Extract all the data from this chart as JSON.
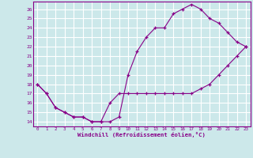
{
  "xlabel": "Windchill (Refroidissement éolien,°C)",
  "bg_color": "#cce8ea",
  "grid_color": "#b0d8dc",
  "line_color": "#880088",
  "xlim": [
    -0.5,
    23.5
  ],
  "ylim": [
    13.5,
    26.8
  ],
  "xticks": [
    0,
    1,
    2,
    3,
    4,
    5,
    6,
    7,
    8,
    9,
    10,
    11,
    12,
    13,
    14,
    15,
    16,
    17,
    18,
    19,
    20,
    21,
    22,
    23
  ],
  "yticks": [
    14,
    15,
    16,
    17,
    18,
    19,
    20,
    21,
    22,
    23,
    24,
    25,
    26
  ],
  "upper_x": [
    0,
    1,
    2,
    3,
    4,
    5,
    6,
    7,
    8,
    9,
    10,
    11,
    12,
    13,
    14,
    15,
    16,
    17,
    18,
    19,
    20,
    21,
    22,
    23
  ],
  "upper_y": [
    18,
    17,
    15.5,
    15,
    14.5,
    14.5,
    14,
    14,
    14,
    14.5,
    19.0,
    21.5,
    23.0,
    24.0,
    24.0,
    25.5,
    26.0,
    26.5,
    26.0,
    25.0,
    24.5,
    23.5,
    22.5,
    22.0
  ],
  "lower_x": [
    0,
    1,
    2,
    3,
    4,
    5,
    6,
    7,
    8,
    9,
    10,
    11,
    12,
    13,
    14,
    15,
    16,
    17,
    18,
    19,
    20,
    21,
    22,
    23
  ],
  "lower_y": [
    18,
    17,
    15.5,
    15,
    14.5,
    14.5,
    14,
    14,
    16.0,
    17.0,
    17.0,
    17.0,
    17.0,
    17.0,
    17.0,
    17.0,
    17.0,
    17.0,
    17.5,
    18.0,
    19.0,
    20.0,
    21.0,
    22.0
  ]
}
